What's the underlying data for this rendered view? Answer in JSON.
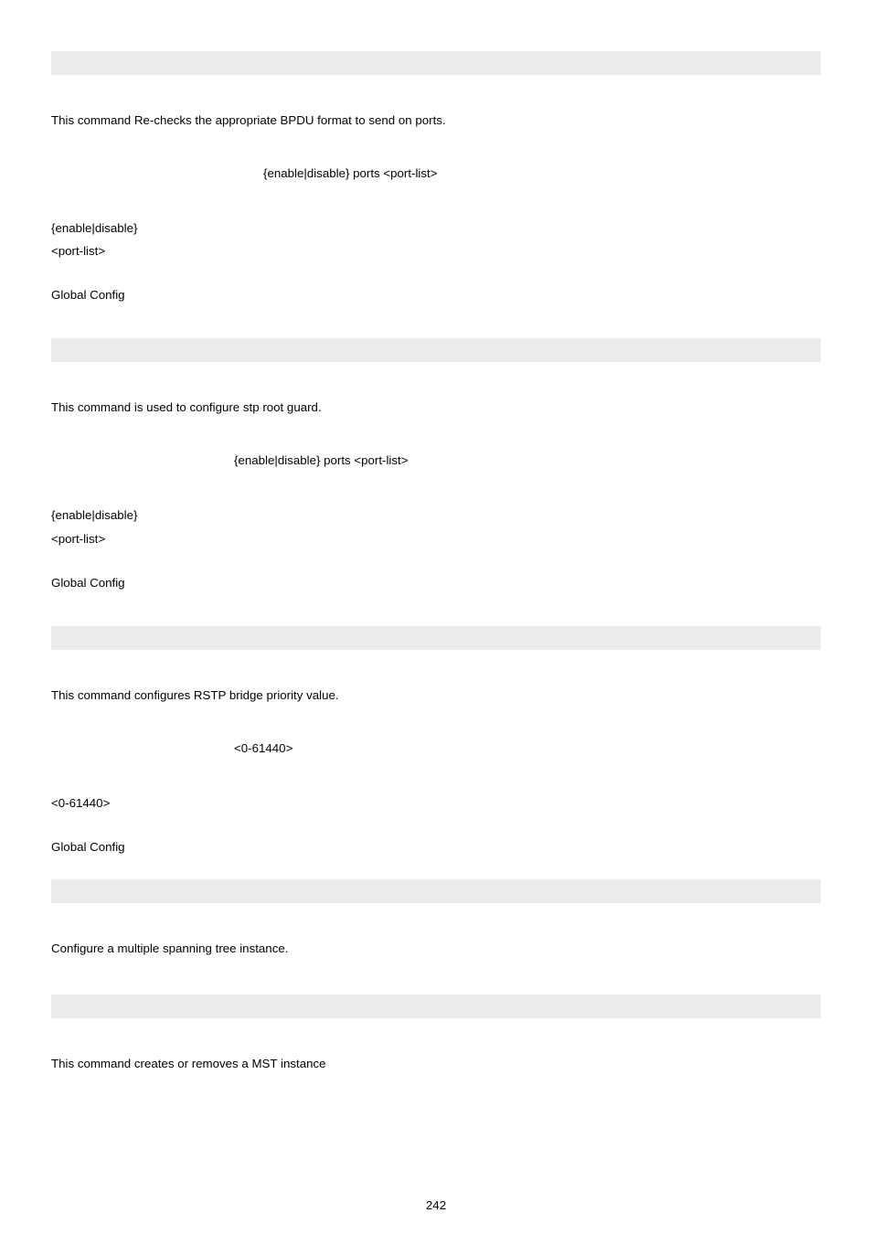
{
  "section1": {
    "desc": "This command Re-checks the appropriate BPDU format to send on ports.",
    "syntax": "{enable|disable} ports <port-list>",
    "param1": "{enable|disable}",
    "param2": "<port-list>",
    "mode": "Global Config"
  },
  "section2": {
    "desc": "This command is used to configure stp root guard.",
    "syntax": "{enable|disable} ports <port-list>",
    "param1": "{enable|disable}",
    "param2": "<port-list>",
    "mode": "Global Config"
  },
  "section3": {
    "desc": "This command configures RSTP bridge priority value.",
    "syntax": "<0-61440>",
    "param1": "<0-61440>",
    "mode": "Global Config"
  },
  "section4": {
    "desc": "Configure a multiple spanning tree instance."
  },
  "section5": {
    "desc": "This command creates or removes a MST instance"
  },
  "pageNumber": "242"
}
